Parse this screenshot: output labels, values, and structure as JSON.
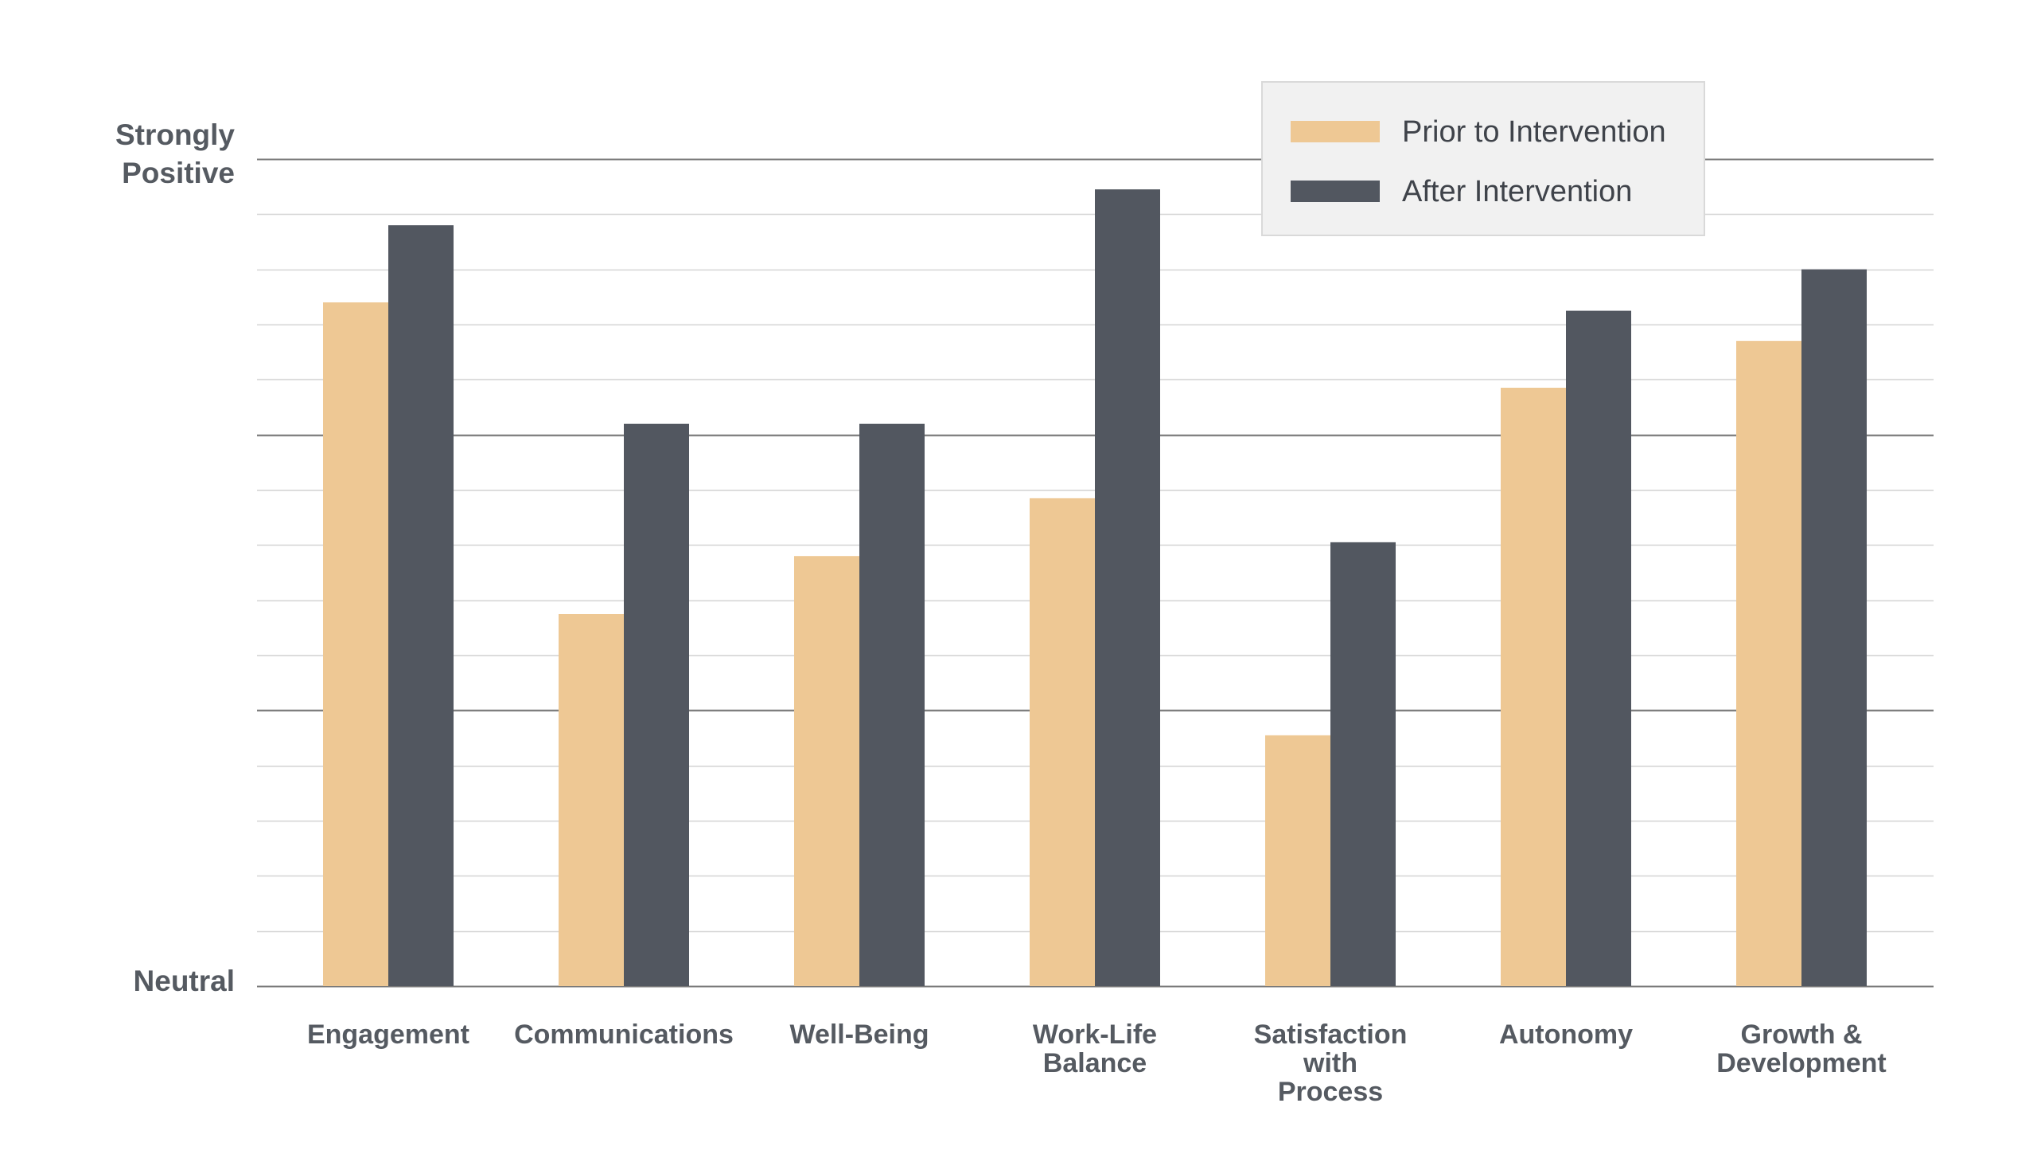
{
  "chart_data": {
    "type": "bar",
    "title": "",
    "xlabel": "",
    "ylabel": "",
    "y_tick_labels": [
      {
        "value": 0,
        "lines": [
          "Neutral"
        ]
      },
      {
        "value": 15,
        "lines": [
          "Strongly",
          "Positive"
        ]
      }
    ],
    "ylim": [
      0,
      15
    ],
    "grid": true,
    "minor_grid_step": 1,
    "major_grid_values": [
      5,
      10,
      15
    ],
    "legend_position": "top-right",
    "categories": [
      {
        "lines": [
          "Engagement"
        ]
      },
      {
        "lines": [
          "Communications"
        ]
      },
      {
        "lines": [
          "Well-Being"
        ]
      },
      {
        "lines": [
          "Work-Life",
          "Balance"
        ]
      },
      {
        "lines": [
          "Satisfaction",
          "with",
          "Process"
        ]
      },
      {
        "lines": [
          "Autonomy"
        ]
      },
      {
        "lines": [
          "Growth &",
          "Development"
        ]
      }
    ],
    "series": [
      {
        "name": "Prior to Intervention",
        "color": "#EEC894",
        "values": [
          12.4,
          6.75,
          7.8,
          8.85,
          4.55,
          10.85,
          11.7
        ]
      },
      {
        "name": "After Intervention",
        "color": "#525760",
        "values": [
          13.8,
          10.2,
          10.2,
          14.45,
          8.05,
          12.25,
          13.0
        ]
      }
    ]
  }
}
